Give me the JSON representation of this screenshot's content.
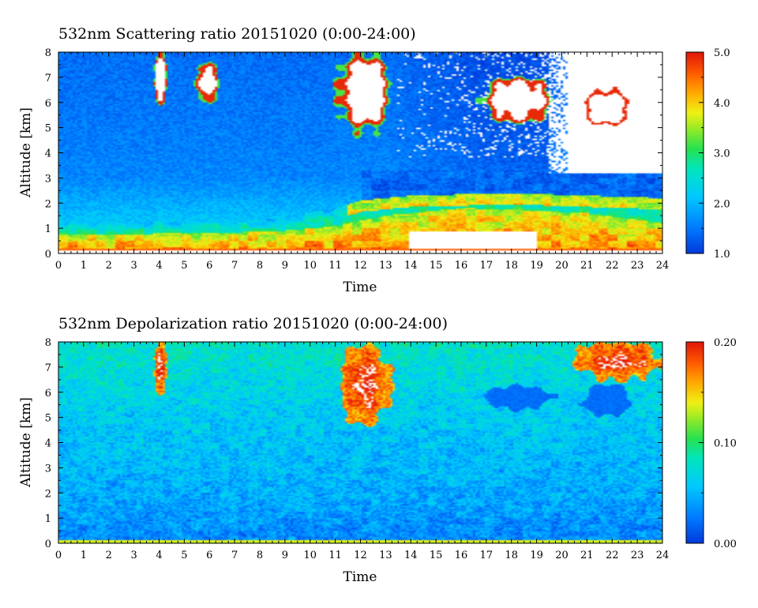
{
  "chart_data": [
    {
      "type": "heatmap",
      "title": "532nm Scattering ratio  20151020 (0:00-24:00)",
      "xlabel": "Time",
      "ylabel": "Altitude [km]",
      "xlim": [
        0,
        24
      ],
      "ylim": [
        0,
        8
      ],
      "x_ticks": [
        "0",
        "1",
        "2",
        "3",
        "4",
        "5",
        "6",
        "7",
        "8",
        "9",
        "10",
        "11",
        "12",
        "13",
        "14",
        "15",
        "16",
        "17",
        "18",
        "19",
        "20",
        "21",
        "22",
        "23",
        "24"
      ],
      "y_ticks": [
        "0",
        "1",
        "2",
        "3",
        "4",
        "5",
        "6",
        "7",
        "8"
      ],
      "colorbar": {
        "min": 1.0,
        "max": 5.0,
        "ticks": [
          "1.0",
          "2.0",
          "3.0",
          "4.0",
          "5.0"
        ]
      },
      "features": {
        "background_by_altitude": [
          [
            0.0,
            1.6
          ],
          [
            1.0,
            2.2
          ],
          [
            2.0,
            1.9
          ],
          [
            3.0,
            1.6
          ],
          [
            5.0,
            1.5
          ],
          [
            8.0,
            1.4
          ]
        ],
        "boundary_layer": [
          [
            0,
            0.75
          ],
          [
            6,
            0.8
          ],
          [
            9,
            0.9
          ],
          [
            11,
            1.1
          ],
          [
            13,
            1.5
          ],
          [
            16,
            1.8
          ],
          [
            19,
            1.7
          ],
          [
            21,
            1.6
          ],
          [
            24,
            1.2
          ]
        ],
        "aerosol_layer_top_km": [
          [
            0,
            1.2
          ],
          [
            8,
            1.3
          ],
          [
            11,
            1.8
          ],
          [
            12,
            2.1
          ],
          [
            14,
            2.3
          ],
          [
            18,
            2.4
          ],
          [
            24,
            2.2
          ]
        ],
        "clouds": [
          {
            "t": [
              3.8,
              4.3
            ],
            "z": [
              6.0,
              8.0
            ]
          },
          {
            "t": [
              5.5,
              6.3
            ],
            "z": [
              6.0,
              7.6
            ]
          },
          {
            "t": [
              11.1,
              13.2
            ],
            "z": [
              4.9,
              8.0
            ]
          },
          {
            "t": [
              16.9,
              19.6
            ],
            "z": [
              5.2,
              7.0
            ]
          },
          {
            "t": [
              20.8,
              22.8
            ],
            "z": [
              5.0,
              6.6
            ]
          }
        ],
        "no_signal_region": {
          "t": [
            19.5,
            24
          ],
          "z": [
            3.2,
            8.0
          ]
        }
      }
    },
    {
      "type": "heatmap",
      "title": "532nm Depolarization ratio  20151020 (0:00-24:00)",
      "xlabel": "Time",
      "ylabel": "Altitude [km]",
      "xlim": [
        0,
        24
      ],
      "ylim": [
        0,
        8
      ],
      "x_ticks": [
        "0",
        "1",
        "2",
        "3",
        "4",
        "5",
        "6",
        "7",
        "8",
        "9",
        "10",
        "11",
        "12",
        "13",
        "14",
        "15",
        "16",
        "17",
        "18",
        "19",
        "20",
        "21",
        "22",
        "23",
        "24"
      ],
      "y_ticks": [
        "0",
        "1",
        "2",
        "3",
        "4",
        "5",
        "6",
        "7",
        "8"
      ],
      "colorbar": {
        "min": 0.0,
        "max": 0.2,
        "ticks": [
          "0.00",
          "0.10",
          "0.20"
        ]
      },
      "features": {
        "background_by_altitude": [
          [
            0.0,
            0.03
          ],
          [
            2.0,
            0.045
          ],
          [
            4.0,
            0.055
          ],
          [
            6.0,
            0.065
          ],
          [
            8.0,
            0.08
          ]
        ],
        "high_depolarization_cirrus": [
          {
            "t": [
              3.8,
              4.3
            ],
            "z": [
              6.0,
              8.0
            ]
          },
          {
            "t": [
              11.2,
              13.2
            ],
            "z": [
              4.7,
              8.0
            ]
          },
          {
            "t": [
              20.5,
              24.0
            ],
            "z": [
              6.5,
              8.0
            ]
          }
        ],
        "low_depolarization_water_clouds": [
          {
            "t": [
              16.9,
              19.6
            ],
            "z": [
              5.3,
              6.3
            ]
          },
          {
            "t": [
              20.8,
              22.8
            ],
            "z": [
              5.0,
              6.3
            ]
          }
        ]
      }
    }
  ]
}
